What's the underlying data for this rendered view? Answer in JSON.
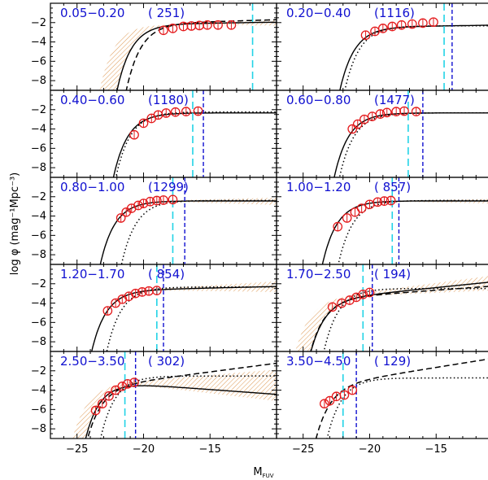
{
  "chart_data": {
    "type": "line",
    "title": "",
    "xlabel_main": "M",
    "xlabel_sub": "FUV",
    "ylabel": "log φ (mag⁻¹Mpc⁻³)",
    "xlim": [
      -27,
      -10
    ],
    "ylim": [
      -9,
      0
    ],
    "x_ticks": [
      -25,
      -20,
      -15
    ],
    "y_ticks": [
      -2,
      -4,
      -6,
      -8
    ],
    "x_tick_labels": [
      "−25",
      "−20",
      "−15"
    ],
    "y_tick_labels": [
      "−2",
      "−4",
      "−6",
      "−8"
    ],
    "colors": {
      "points": "#e41a1c",
      "label": "#1010d0",
      "cyan_line": "#22d3e6",
      "blue_line": "#1010d0",
      "band": "#e0a060",
      "curve": "#000000"
    },
    "panels": [
      {
        "zrange": "0.05−0.20",
        "count": "( 251)",
        "fit": {
          "phi": -2.1,
          "mstar": -19.0,
          "alpha": -1.05
        },
        "dashed": {
          "phi": -2.0,
          "mstar": -18.3,
          "alpha": -1.1
        },
        "dotted": null,
        "band": {
          "mstar": -19.0,
          "phi": -2.1,
          "a_lo": -0.95,
          "a_hi": -1.1,
          "mstar2": -20.3,
          "widen": true
        },
        "cyan_x": -11.8,
        "blue_x": null,
        "points": [
          [
            -18.5,
            -2.8
          ],
          [
            -17.8,
            -2.6
          ],
          [
            -17.0,
            -2.4
          ],
          [
            -16.4,
            -2.35
          ],
          [
            -15.8,
            -2.3
          ],
          [
            -15.2,
            -2.25
          ],
          [
            -14.4,
            -2.25
          ],
          [
            -13.4,
            -2.25
          ]
        ]
      },
      {
        "zrange": "0.20−0.40",
        "count": "(1116)",
        "fit": {
          "phi": -2.4,
          "mstar": -19.3,
          "alpha": -1.05
        },
        "dashed": null,
        "dotted": {
          "phi": -2.3,
          "mstar": -18.9,
          "alpha": -1.0
        },
        "band": null,
        "cyan_x": -14.4,
        "blue_x": -13.8,
        "points": [
          [
            -20.3,
            -3.3
          ],
          [
            -19.6,
            -2.9
          ],
          [
            -19.0,
            -2.6
          ],
          [
            -18.3,
            -2.4
          ],
          [
            -17.6,
            -2.25
          ],
          [
            -16.8,
            -2.15
          ],
          [
            -16.0,
            -2.05
          ],
          [
            -15.2,
            -1.95
          ]
        ]
      },
      {
        "zrange": "0.40−0.60",
        "count": "(1180)",
        "fit": {
          "phi": -2.3,
          "mstar": -19.3,
          "alpha": -1.0
        },
        "dashed": null,
        "dotted": {
          "phi": -2.2,
          "mstar": -19.1,
          "alpha": -1.0
        },
        "band": null,
        "cyan_x": -16.3,
        "blue_x": -15.5,
        "points": [
          [
            -20.7,
            -4.6
          ],
          [
            -20.0,
            -3.4
          ],
          [
            -19.4,
            -2.9
          ],
          [
            -18.9,
            -2.55
          ],
          [
            -18.3,
            -2.35
          ],
          [
            -17.6,
            -2.25
          ],
          [
            -16.8,
            -2.2
          ],
          [
            -15.9,
            -2.15
          ]
        ]
      },
      {
        "zrange": "0.60−0.80",
        "count": "(1477)",
        "fit": {
          "phi": -2.3,
          "mstar": -19.7,
          "alpha": -1.0
        },
        "dashed": null,
        "dotted": {
          "phi": -2.3,
          "mstar": -19.3,
          "alpha": -1.0
        },
        "band": null,
        "cyan_x": -17.1,
        "blue_x": -16.0,
        "points": [
          [
            -21.3,
            -4.0
          ],
          [
            -20.9,
            -3.5
          ],
          [
            -20.4,
            -3.0
          ],
          [
            -19.8,
            -2.7
          ],
          [
            -19.2,
            -2.45
          ],
          [
            -18.7,
            -2.3
          ],
          [
            -18.0,
            -2.2
          ],
          [
            -17.4,
            -2.15
          ],
          [
            -16.5,
            -2.2
          ]
        ]
      },
      {
        "zrange": "0.80−1.00",
        "count": "(1299)",
        "fit": {
          "phi": -2.4,
          "mstar": -20.3,
          "alpha": -1.0
        },
        "dashed": null,
        "dotted": {
          "phi": -2.35,
          "mstar": -18.7,
          "alpha": -1.0
        },
        "band": {
          "mstar": -20.3,
          "phi": -2.4,
          "a_lo": -1.08,
          "a_hi": -0.9,
          "mstar2": null,
          "widen": false
        },
        "cyan_x": -17.8,
        "blue_x": -16.9,
        "points": [
          [
            -21.7,
            -4.2
          ],
          [
            -21.3,
            -3.6
          ],
          [
            -20.9,
            -3.2
          ],
          [
            -20.4,
            -2.9
          ],
          [
            -20.0,
            -2.7
          ],
          [
            -19.5,
            -2.5
          ],
          [
            -19.0,
            -2.4
          ],
          [
            -18.5,
            -2.35
          ],
          [
            -17.8,
            -2.3
          ]
        ]
      },
      {
        "zrange": "1.00−1.20",
        "count": "( 857)",
        "fit": {
          "phi": -2.4,
          "mstar": -20.6,
          "alpha": -1.0
        },
        "dashed": null,
        "dotted": {
          "phi": -2.35,
          "mstar": -19.4,
          "alpha": -1.0
        },
        "band": {
          "mstar": -20.6,
          "phi": -2.4,
          "a_lo": -1.05,
          "a_hi": -0.93,
          "mstar2": null,
          "widen": false
        },
        "cyan_x": -18.3,
        "blue_x": -17.8,
        "points": [
          [
            -22.4,
            -5.1
          ],
          [
            -21.7,
            -4.2
          ],
          [
            -21.1,
            -3.6
          ],
          [
            -20.6,
            -3.2
          ],
          [
            -20.0,
            -2.8
          ],
          [
            -19.4,
            -2.55
          ],
          [
            -18.9,
            -2.45
          ],
          [
            -18.4,
            -2.4
          ]
        ]
      },
      {
        "zrange": "1.20−1.70",
        "count": "( 854)",
        "fit": {
          "phi": -2.6,
          "mstar": -21.0,
          "alpha": -1.08
        },
        "dashed": null,
        "dotted": {
          "phi": -2.3,
          "mstar": -19.8,
          "alpha": -1.0
        },
        "band": {
          "mstar": -21.0,
          "phi": -2.6,
          "a_lo": -1.2,
          "a_hi": -0.95,
          "mstar2": null,
          "widen": false
        },
        "cyan_x": -19.0,
        "blue_x": -18.5,
        "points": [
          [
            -22.7,
            -4.8
          ],
          [
            -22.1,
            -4.0
          ],
          [
            -21.6,
            -3.6
          ],
          [
            -21.1,
            -3.3
          ],
          [
            -20.6,
            -3.0
          ],
          [
            -20.1,
            -2.85
          ],
          [
            -19.6,
            -2.75
          ],
          [
            -19.0,
            -2.7
          ]
        ]
      },
      {
        "zrange": "1.70−2.50",
        "count": "( 194)",
        "fit": {
          "phi": -3.3,
          "mstar": -21.7,
          "alpha": -1.35
        },
        "dashed": {
          "phi": -3.3,
          "mstar": -21.7,
          "alpha": -1.25
        },
        "dotted": {
          "phi": -2.45,
          "mstar": -20.5,
          "alpha": -1.0
        },
        "band": {
          "mstar": -21.7,
          "phi": -3.3,
          "a_lo": -1.45,
          "a_hi": -1.15,
          "mstar2": -22.9,
          "widen": true
        },
        "cyan_x": -20.5,
        "blue_x": -19.8,
        "points": [
          [
            -22.8,
            -4.4
          ],
          [
            -22.1,
            -4.0
          ],
          [
            -21.5,
            -3.7
          ],
          [
            -21.0,
            -3.4
          ],
          [
            -20.5,
            -3.1
          ],
          [
            -20.0,
            -2.9
          ]
        ]
      },
      {
        "zrange": "2.50−3.50",
        "count": "( 302)",
        "fit": {
          "phi": -3.25,
          "mstar": -21.5,
          "alpha": -0.75
        },
        "dashed": {
          "phi": -3.25,
          "mstar": -21.5,
          "alpha": -1.45
        },
        "dotted": {
          "phi": -2.5,
          "mstar": -20.3,
          "alpha": -1.0
        },
        "band": {
          "mstar": -21.5,
          "phi": -3.25,
          "a_lo": -1.28,
          "a_hi": -0.6,
          "mstar2": -22.6,
          "widen": true
        },
        "cyan_x": -21.4,
        "blue_x": -20.6,
        "points": [
          [
            -23.6,
            -6.1
          ],
          [
            -23.1,
            -5.4
          ],
          [
            -22.6,
            -4.6
          ],
          [
            -22.1,
            -4.0
          ],
          [
            -21.6,
            -3.6
          ],
          [
            -21.2,
            -3.35
          ],
          [
            -20.7,
            -3.2
          ]
        ]
      },
      {
        "zrange": "3.50−4.50",
        "count": "( 129)",
        "fit": null,
        "dashed": {
          "phi": -3.0,
          "mstar": -21.3,
          "alpha": -1.55
        },
        "dotted": {
          "phi": -2.7,
          "mstar": -20.3,
          "alpha": -1.0
        },
        "band": null,
        "cyan_x": -22.0,
        "blue_x": -21.0,
        "points": [
          [
            -23.4,
            -5.4
          ],
          [
            -23.0,
            -5.1
          ],
          [
            -22.5,
            -4.65
          ],
          [
            -21.9,
            -4.5
          ],
          [
            -21.3,
            -4.0
          ]
        ]
      }
    ]
  }
}
